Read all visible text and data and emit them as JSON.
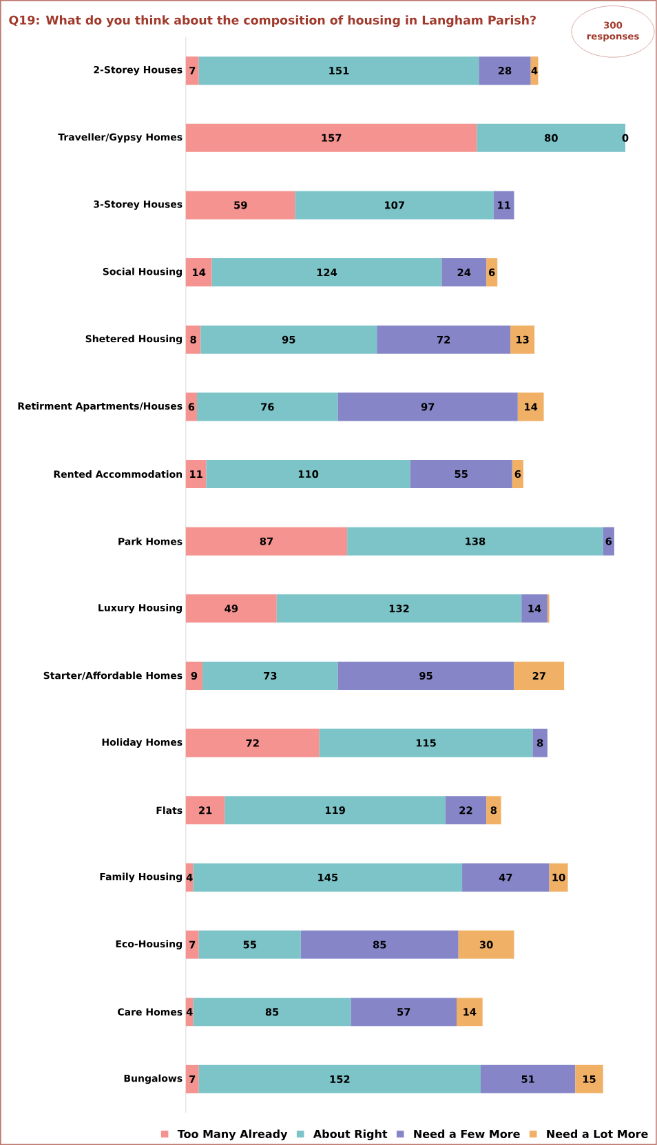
{
  "chart_data": {
    "type": "bar",
    "orientation": "horizontal",
    "stacked": true,
    "title": "Q19: What do you think about the composition of housing in Langham Parish?",
    "annotations": [
      "300 responses"
    ],
    "categories": [
      "2-Storey Houses",
      "Traveller/Gypsy Homes",
      "3-Storey Houses",
      "Social Housing",
      "Shetered Housing",
      "Retirment Apartments/Houses",
      "Rented Accommodation",
      "Park Homes",
      "Luxury Housing",
      "Starter/Affordable Homes",
      "Holiday Homes",
      "Flats",
      "Family Housing",
      "Eco-Housing",
      "Care Homes",
      "Bungalows"
    ],
    "series": [
      {
        "name": "Too Many Already",
        "color": "#f4938f",
        "values": [
          7,
          157,
          59,
          14,
          8,
          6,
          11,
          87,
          49,
          9,
          72,
          21,
          4,
          7,
          4,
          7
        ],
        "value_labels": [
          "7",
          "157",
          "59",
          "14",
          "8",
          "6",
          "11",
          "87",
          "49",
          "9",
          "72",
          "21",
          "4",
          "7",
          "4",
          "7"
        ]
      },
      {
        "name": "About Right",
        "color": "#7dc4c8",
        "values": [
          151,
          80,
          107,
          124,
          95,
          76,
          110,
          138,
          132,
          73,
          115,
          119,
          145,
          55,
          85,
          152
        ],
        "value_labels": [
          "151",
          "80",
          "107",
          "124",
          "95",
          "76",
          "110",
          "138",
          "132",
          "73",
          "115",
          "119",
          "145",
          "55",
          "85",
          "152"
        ]
      },
      {
        "name": "Need a Few More",
        "color": "#8585c8",
        "values": [
          28,
          0,
          11,
          24,
          72,
          97,
          55,
          6,
          14,
          95,
          8,
          22,
          47,
          85,
          57,
          51
        ],
        "value_labels": [
          "28",
          "0",
          "11",
          "24",
          "72",
          "97",
          "55",
          "6",
          "14",
          "95",
          "8",
          "22",
          "47",
          "85",
          "57",
          "51"
        ]
      },
      {
        "name": "Need a Lot More",
        "color": "#f0b065",
        "values": [
          4,
          null,
          null,
          6,
          13,
          14,
          6,
          null,
          1,
          27,
          null,
          8,
          10,
          30,
          14,
          15
        ],
        "value_labels": [
          "4",
          null,
          null,
          "6",
          "13",
          "14",
          "6",
          null,
          null,
          "27",
          null,
          "8",
          "10",
          "30",
          "14",
          "15"
        ]
      }
    ],
    "legend": "bottom"
  }
}
